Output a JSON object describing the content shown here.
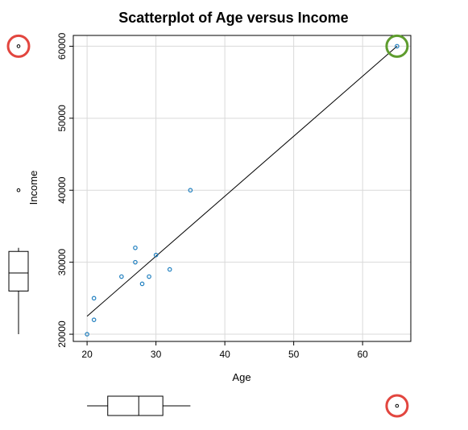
{
  "chart_data": {
    "type": "scatter",
    "title": "Scatterplot of Age versus Income",
    "xlabel": "Age",
    "ylabel": "Income",
    "xlim": [
      18,
      67
    ],
    "ylim": [
      19000,
      61500
    ],
    "x_ticks": [
      20,
      30,
      40,
      50,
      60
    ],
    "y_ticks": [
      20000,
      30000,
      40000,
      50000,
      60000
    ],
    "grid": true,
    "points": [
      {
        "x": 20,
        "y": 20000
      },
      {
        "x": 21,
        "y": 22000
      },
      {
        "x": 21,
        "y": 25000
      },
      {
        "x": 25,
        "y": 28000
      },
      {
        "x": 27,
        "y": 30000
      },
      {
        "x": 27,
        "y": 32000
      },
      {
        "x": 28,
        "y": 27000
      },
      {
        "x": 29,
        "y": 28000
      },
      {
        "x": 30,
        "y": 31000
      },
      {
        "x": 32,
        "y": 29000
      },
      {
        "x": 35,
        "y": 40000
      },
      {
        "x": 65,
        "y": 60000
      }
    ],
    "regression_line": {
      "x": [
        20,
        65
      ],
      "y": [
        22500,
        60000
      ]
    },
    "marginal_boxplots": {
      "age": {
        "min": 20,
        "q1": 23,
        "median": 27.5,
        "q3": 31,
        "max": 35,
        "outliers": [
          65
        ]
      },
      "income": {
        "min": 20000,
        "q1": 26000,
        "median": 28500,
        "q3": 31500,
        "max": 32000,
        "outliers": [
          40000,
          60000
        ]
      }
    },
    "highlight_colors": {
      "outlier_circle": "#e2463f",
      "influential_circle": "#5e9c2e",
      "point": "#1f7fbf"
    }
  }
}
